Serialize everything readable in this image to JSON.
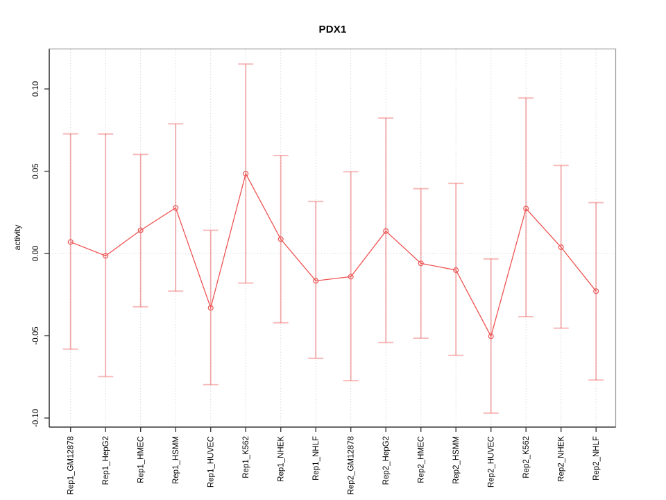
{
  "chart_data": {
    "type": "line",
    "title": "PDX1",
    "xlabel": "",
    "ylabel": "activity",
    "legend_position": "none",
    "marker": "open-circle",
    "grid": {
      "vertical_dotted": true,
      "horizontal_dotted_at_zero": true
    },
    "categories": [
      "Rep1_GM12878",
      "Rep1_HepG2",
      "Rep1_HMEC",
      "Rep1_HSMM",
      "Rep1_HUVEC",
      "Rep1_K562",
      "Rep1_NHEK",
      "Rep1_NHLF",
      "Rep2_GM12878",
      "Rep2_HepG2",
      "Rep2_HMEC",
      "Rep2_HSMM",
      "Rep2_HUVEC",
      "Rep2_K562",
      "Rep2_NHEK",
      "Rep2_NHLF"
    ],
    "series": [
      {
        "name": "activity",
        "values": [
          0.007,
          -0.0014,
          0.0141,
          0.0277,
          -0.033,
          0.0485,
          0.0087,
          -0.0166,
          -0.0141,
          0.0136,
          -0.006,
          -0.0101,
          -0.0503,
          0.0273,
          0.0038,
          -0.0229
        ],
        "upper": [
          0.0727,
          0.0726,
          0.0602,
          0.0788,
          0.0141,
          0.1151,
          0.0595,
          0.0316,
          0.0497,
          0.0823,
          0.0394,
          0.0426,
          -0.0033,
          0.0945,
          0.0535,
          0.0309
        ],
        "lower": [
          -0.0581,
          -0.0748,
          -0.0324,
          -0.0229,
          -0.0797,
          -0.018,
          -0.0421,
          -0.0637,
          -0.0773,
          -0.0541,
          -0.0515,
          -0.0619,
          -0.097,
          -0.0384,
          -0.0454,
          -0.0769
        ]
      }
    ],
    "yticks": [
      0.1,
      0.05,
      0.0,
      -0.05,
      -0.1
    ],
    "ytick_labels": [
      "0.10",
      "0.05",
      "0.00",
      "-0.05",
      "-0.10"
    ],
    "ylim": [
      -0.1055,
      0.1243
    ],
    "colors": {
      "error_bar": "#ec5c5c",
      "error_bar_opacity": "0.5",
      "error_bar_cap_opacity": "0.42",
      "line": "#ef5252",
      "marker": "#ea5f5f",
      "grid": "#d9d9d9",
      "box": "#999999",
      "axis": "#3d3d3d",
      "text": "#000000",
      "background": "#ffffff"
    }
  }
}
